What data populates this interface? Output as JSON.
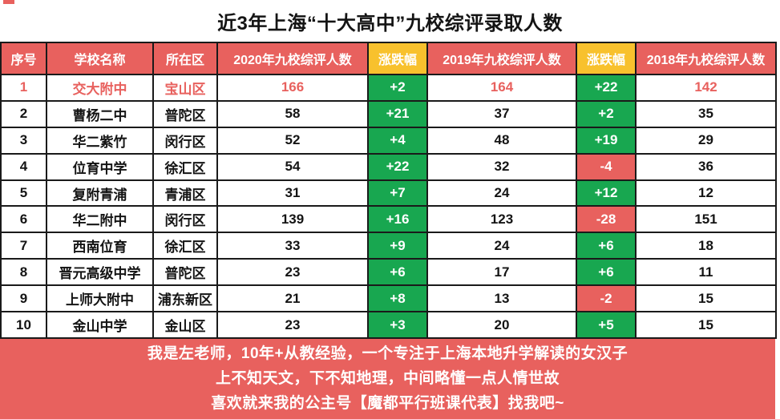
{
  "title": "近3年上海“十大高中”九校综评录取人数",
  "colors": {
    "header_red": "#e8615e",
    "change_header_yellow": "#f8c12d",
    "positive_green": "#18a750",
    "negative_red": "#e8615e",
    "highlight_text_red": "#e8615e",
    "text_black": "#141414",
    "white": "#ffffff"
  },
  "chart_data": {
    "type": "table",
    "title": "近3年上海“十大高中”九校综评录取人数",
    "columns": [
      "序号",
      "学校名称",
      "所在区",
      "2020年九校综评人数",
      "涨跌幅",
      "2019年九校综评人数",
      "涨跌幅",
      "2018年九校综评人数"
    ],
    "rows": [
      [
        "1",
        "交大附中",
        "宝山区",
        "166",
        "+2",
        "164",
        "+22",
        "142"
      ],
      [
        "2",
        "曹杨二中",
        "普陀区",
        "58",
        "+21",
        "37",
        "+2",
        "35"
      ],
      [
        "3",
        "华二紫竹",
        "闵行区",
        "52",
        "+4",
        "48",
        "+19",
        "29"
      ],
      [
        "4",
        "位育中学",
        "徐汇区",
        "54",
        "+22",
        "32",
        "-4",
        "36"
      ],
      [
        "5",
        "复附青浦",
        "青浦区",
        "31",
        "+7",
        "24",
        "+12",
        "12"
      ],
      [
        "6",
        "华二附中",
        "闵行区",
        "139",
        "+16",
        "123",
        "-28",
        "151"
      ],
      [
        "7",
        "西南位育",
        "徐汇区",
        "33",
        "+9",
        "24",
        "+6",
        "18"
      ],
      [
        "8",
        "晋元高级中学",
        "普陀区",
        "23",
        "+6",
        "17",
        "+6",
        "11"
      ],
      [
        "9",
        "上师大附中",
        "浦东新区",
        "21",
        "+8",
        "13",
        "-2",
        "15"
      ],
      [
        "10",
        "金山中学",
        "金山区",
        "23",
        "+3",
        "20",
        "+5",
        "15"
      ]
    ],
    "highlight_row_index": 0,
    "change_column_indexes": [
      4,
      6
    ]
  },
  "footer": {
    "lines": [
      "我是左老师，10年+从教经验，一个专注于上海本地升学解读的女汉子",
      "上不知天文，下不知地理，中间略懂一点人情世故",
      "喜欢就来我的公主号【魔都平行班课代表】找我吧~"
    ]
  }
}
